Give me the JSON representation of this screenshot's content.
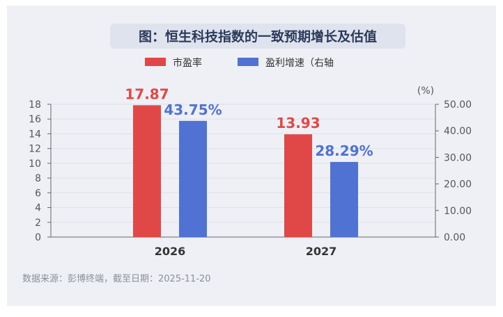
{
  "title": "图：恒生科技指数的一致预期增长及估值",
  "source": "数据来源：彭博终端，截至日期：2025-11-20",
  "colors": {
    "series1": "#e04848",
    "series2": "#4f72d3",
    "title_bg": "#dfe3ee"
  },
  "chart_data": {
    "type": "bar",
    "categories": [
      "2026",
      "2027"
    ],
    "series": [
      {
        "name": "市盈率",
        "values": [
          17.87,
          13.93
        ],
        "labels": [
          "17.87",
          "13.93"
        ],
        "axis": "left"
      },
      {
        "name": "盈利增速（右轴",
        "values": [
          43.75,
          28.29
        ],
        "labels": [
          "43.75%",
          "28.29%"
        ],
        "axis": "right"
      }
    ],
    "left_axis": {
      "min": 0,
      "max": 18,
      "ticks": [
        "0",
        "2",
        "4",
        "6",
        "8",
        "10",
        "12",
        "14",
        "16",
        "18"
      ]
    },
    "right_axis": {
      "min": 0,
      "max": 50,
      "unit": "(%)",
      "ticks": [
        "0.00",
        "10.00",
        "20.00",
        "30.00",
        "40.00",
        "50.00"
      ]
    },
    "legend_position": "top-center"
  }
}
